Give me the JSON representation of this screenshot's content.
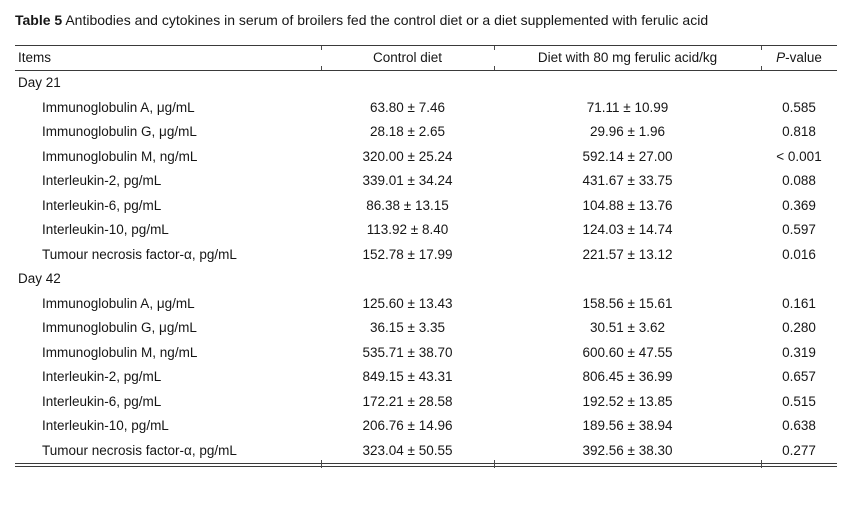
{
  "caption": {
    "label": "Table 5",
    "text": " Antibodies and cytokines in serum of broilers fed the control diet or a diet supplemented with ferulic acid"
  },
  "table": {
    "columns": [
      {
        "label": "Items"
      },
      {
        "label": "Control diet"
      },
      {
        "label": "Diet with 80 mg ferulic acid/kg"
      },
      {
        "label": "P-value",
        "italic_prefix": "P",
        "rest": "-value"
      }
    ],
    "sections": [
      {
        "title": "Day 21",
        "rows": [
          {
            "item": "Immunoglobulin A, μg/mL",
            "control": "63.80 ± 7.46",
            "treatment": "71.11 ± 10.99",
            "p": "0.585"
          },
          {
            "item": "Immunoglobulin G, μg/mL",
            "control": "28.18 ± 2.65",
            "treatment": "29.96 ± 1.96",
            "p": "0.818"
          },
          {
            "item": "Immunoglobulin M, ng/mL",
            "control": "320.00 ± 25.24",
            "treatment": "592.14 ± 27.00",
            "p": "< 0.001"
          },
          {
            "item": "Interleukin-2, pg/mL",
            "control": "339.01 ± 34.24",
            "treatment": "431.67 ± 33.75",
            "p": "0.088"
          },
          {
            "item": "Interleukin-6, pg/mL",
            "control": "86.38 ± 13.15",
            "treatment": "104.88 ± 13.76",
            "p": "0.369"
          },
          {
            "item": "Interleukin-10, pg/mL",
            "control": "113.92 ± 8.40",
            "treatment": "124.03 ± 14.74",
            "p": "0.597"
          },
          {
            "item": "Tumour necrosis factor-α, pg/mL",
            "control": "152.78 ± 17.99",
            "treatment": "221.57 ± 13.12",
            "p": "0.016"
          }
        ]
      },
      {
        "title": "Day 42",
        "rows": [
          {
            "item": "Immunoglobulin A, μg/mL",
            "control": "125.60 ± 13.43",
            "treatment": "158.56 ± 15.61",
            "p": "0.161"
          },
          {
            "item": "Immunoglobulin G, μg/mL",
            "control": "36.15 ± 3.35",
            "treatment": "30.51 ± 3.62",
            "p": "0.280"
          },
          {
            "item": "Immunoglobulin M, ng/mL",
            "control": "535.71 ± 38.70",
            "treatment": "600.60 ± 47.55",
            "p": "0.319"
          },
          {
            "item": "Interleukin-2, pg/mL",
            "control": "849.15 ± 43.31",
            "treatment": "806.45 ± 36.99",
            "p": "0.657"
          },
          {
            "item": "Interleukin-6, pg/mL",
            "control": "172.21 ± 28.58",
            "treatment": "192.52 ± 13.85",
            "p": "0.515"
          },
          {
            "item": "Interleukin-10, pg/mL",
            "control": "206.76 ± 14.96",
            "treatment": "189.56 ± 38.94",
            "p": "0.638"
          },
          {
            "item": "Tumour necrosis factor-α, pg/mL",
            "control": "323.04 ± 50.55",
            "treatment": "392.56 ± 38.30",
            "p": "0.277"
          }
        ]
      }
    ]
  }
}
